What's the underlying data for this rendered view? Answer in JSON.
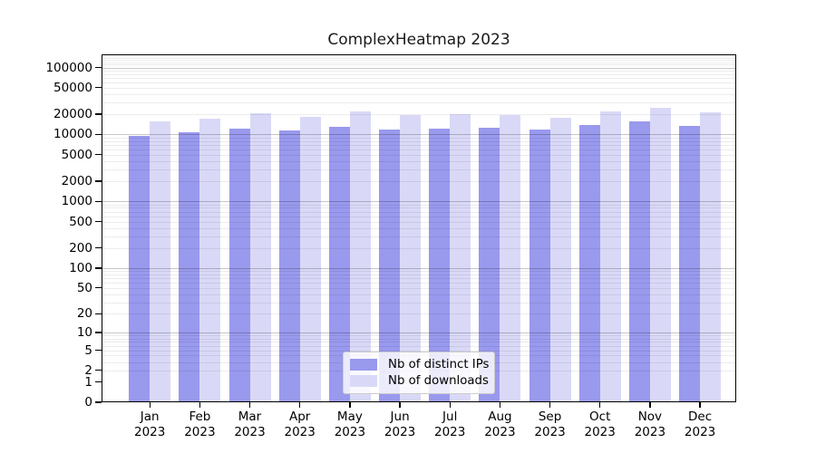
{
  "title": "ComplexHeatmap 2023",
  "colors": {
    "background": "#ffffff",
    "axis": "#000000",
    "grid_major": "#c8c8c8",
    "grid_minor": "#ebebeb",
    "series_ips": "#9999ee",
    "series_downloads": "#d9d9f7"
  },
  "chart_data": {
    "type": "bar",
    "title": "ComplexHeatmap 2023",
    "xlabel": "",
    "ylabel": "",
    "yscale": "log1p",
    "ylim": [
      0,
      157000
    ],
    "grid": "major and minor horizontal gridlines, drawn over bars",
    "legend_position": "inside bottom-center",
    "categories": [
      "Jan 2023",
      "Feb 2023",
      "Mar 2023",
      "Apr 2023",
      "May 2023",
      "Jun 2023",
      "Jul 2023",
      "Aug 2023",
      "Sep 2023",
      "Oct 2023",
      "Nov 2023",
      "Dec 2023"
    ],
    "yticks": [
      0,
      1,
      2,
      5,
      10,
      20,
      50,
      100,
      200,
      500,
      1000,
      2000,
      5000,
      10000,
      20000,
      50000,
      100000
    ],
    "grid_major_values": [
      10,
      100,
      1000,
      10000,
      100000
    ],
    "series": [
      {
        "name": "Nb of distinct IPs",
        "color": "#9999ee",
        "values": [
          9400,
          10900,
          12400,
          11500,
          13200,
          11900,
          12200,
          12600,
          11800,
          13800,
          15800,
          13400
        ]
      },
      {
        "name": "Nb of downloads",
        "color": "#d9d9f7",
        "values": [
          15700,
          17000,
          20500,
          18600,
          22000,
          19500,
          19900,
          19700,
          17900,
          22100,
          25000,
          21500
        ]
      }
    ]
  }
}
